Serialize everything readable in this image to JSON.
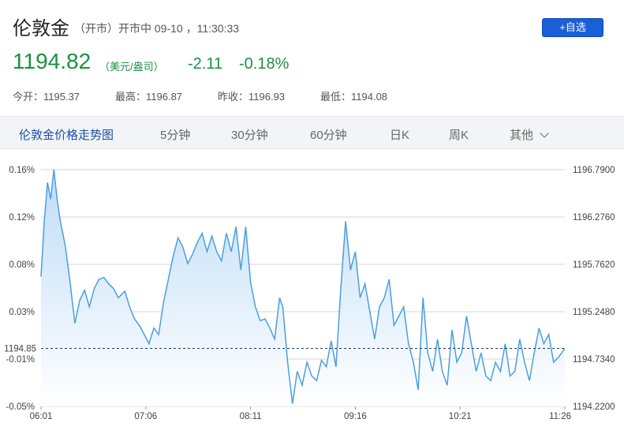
{
  "header": {
    "title": "伦敦金",
    "status": "（开市）开市中 09-10 ，11:30:33",
    "watch_button": "+自选"
  },
  "quote": {
    "price": "1194.82",
    "unit": "（美元/盎司）",
    "change": "-2.11",
    "change_pct": "-0.18%"
  },
  "stats": {
    "open": "今开：1195.37",
    "high": "最高：1196.87",
    "prev_close": "昨收：1196.93",
    "low": "最低：1194.08"
  },
  "tabs": [
    "伦敦金价格走势图",
    "5分钟",
    "30分钟",
    "60分钟",
    "日K",
    "周K",
    "其他"
  ],
  "colors": {
    "line": "#4a9fe0",
    "fill_top": "#bfdcf7",
    "fill_bottom": "#ffffff",
    "price_green": "#1a9142",
    "current_line": "#1f3a63"
  },
  "chart_data": {
    "type": "area",
    "x_ticks": [
      "06:01",
      "07:06",
      "08:11",
      "09:16",
      "10:21",
      "11:26"
    ],
    "x_range": [
      "06:01",
      "11:26"
    ],
    "y_left_ticks": [
      "0.16%",
      "0.12%",
      "0.08%",
      "0.03%",
      "-0.01%",
      "-0.05%"
    ],
    "y_right_ticks": [
      "1196.7900",
      "1196.2760",
      "1195.7620",
      "1195.2480",
      "1194.7340",
      "1194.2200"
    ],
    "ylim": [
      1194.22,
      1196.79
    ],
    "current_price_label": "1194.85",
    "current_price": 1194.85,
    "grid": true,
    "series": [
      {
        "points": [
          [
            "06:01",
            1195.63
          ],
          [
            "06:03",
            1196.23
          ],
          [
            "06:05",
            1196.65
          ],
          [
            "06:07",
            1196.47
          ],
          [
            "06:09",
            1196.79
          ],
          [
            "06:11",
            1196.47
          ],
          [
            "06:13",
            1196.23
          ],
          [
            "06:16",
            1195.97
          ],
          [
            "06:19",
            1195.57
          ],
          [
            "06:22",
            1195.12
          ],
          [
            "06:25",
            1195.37
          ],
          [
            "06:28",
            1195.48
          ],
          [
            "06:31",
            1195.3
          ],
          [
            "06:34",
            1195.5
          ],
          [
            "06:37",
            1195.6
          ],
          [
            "06:40",
            1195.62
          ],
          [
            "06:43",
            1195.55
          ],
          [
            "06:46",
            1195.5
          ],
          [
            "06:49",
            1195.4
          ],
          [
            "06:53",
            1195.47
          ],
          [
            "06:56",
            1195.3
          ],
          [
            "06:59",
            1195.17
          ],
          [
            "07:02",
            1195.1
          ],
          [
            "07:05",
            1195.0
          ],
          [
            "07:08",
            1194.9
          ],
          [
            "07:11",
            1195.07
          ],
          [
            "07:14",
            1195.0
          ],
          [
            "07:17",
            1195.35
          ],
          [
            "07:20",
            1195.6
          ],
          [
            "07:23",
            1195.85
          ],
          [
            "07:26",
            1196.05
          ],
          [
            "07:29",
            1195.95
          ],
          [
            "07:32",
            1195.77
          ],
          [
            "07:35",
            1195.87
          ],
          [
            "07:38",
            1196.0
          ],
          [
            "07:41",
            1196.1
          ],
          [
            "07:44",
            1195.9
          ],
          [
            "07:47",
            1196.07
          ],
          [
            "07:50",
            1195.9
          ],
          [
            "07:53",
            1195.8
          ],
          [
            "07:56",
            1196.1
          ],
          [
            "07:59",
            1195.9
          ],
          [
            "08:02",
            1196.17
          ],
          [
            "08:05",
            1195.7
          ],
          [
            "08:08",
            1196.17
          ],
          [
            "08:11",
            1195.57
          ],
          [
            "08:14",
            1195.3
          ],
          [
            "08:17",
            1195.15
          ],
          [
            "08:20",
            1195.17
          ],
          [
            "08:23",
            1195.07
          ],
          [
            "08:26",
            1194.95
          ],
          [
            "08:29",
            1195.4
          ],
          [
            "08:31",
            1195.3
          ],
          [
            "08:34",
            1194.7
          ],
          [
            "08:37",
            1194.25
          ],
          [
            "08:40",
            1194.6
          ],
          [
            "08:43",
            1194.45
          ],
          [
            "08:46",
            1194.7
          ],
          [
            "08:49",
            1194.55
          ],
          [
            "08:52",
            1194.5
          ],
          [
            "08:55",
            1194.72
          ],
          [
            "08:58",
            1194.65
          ],
          [
            "09:01",
            1194.93
          ],
          [
            "09:04",
            1194.65
          ],
          [
            "09:07",
            1195.5
          ],
          [
            "09:10",
            1196.23
          ],
          [
            "09:13",
            1195.7
          ],
          [
            "09:16",
            1195.9
          ],
          [
            "09:19",
            1195.4
          ],
          [
            "09:22",
            1195.55
          ],
          [
            "09:25",
            1195.25
          ],
          [
            "09:28",
            1194.95
          ],
          [
            "09:31",
            1195.3
          ],
          [
            "09:34",
            1195.4
          ],
          [
            "09:37",
            1195.6
          ],
          [
            "09:40",
            1195.1
          ],
          [
            "09:43",
            1195.2
          ],
          [
            "09:46",
            1195.3
          ],
          [
            "09:49",
            1194.9
          ],
          [
            "09:52",
            1194.7
          ],
          [
            "09:55",
            1194.4
          ],
          [
            "09:58",
            1195.4
          ],
          [
            "10:01",
            1194.8
          ],
          [
            "10:04",
            1194.6
          ],
          [
            "10:07",
            1194.95
          ],
          [
            "10:10",
            1194.6
          ],
          [
            "10:13",
            1194.45
          ],
          [
            "10:16",
            1195.05
          ],
          [
            "10:19",
            1194.7
          ],
          [
            "10:22",
            1194.8
          ],
          [
            "10:25",
            1195.2
          ],
          [
            "10:28",
            1194.9
          ],
          [
            "10:31",
            1194.6
          ],
          [
            "10:34",
            1194.8
          ],
          [
            "10:37",
            1194.55
          ],
          [
            "10:40",
            1194.5
          ],
          [
            "10:43",
            1194.7
          ],
          [
            "10:46",
            1194.6
          ],
          [
            "10:49",
            1194.9
          ],
          [
            "10:52",
            1194.55
          ],
          [
            "10:55",
            1194.6
          ],
          [
            "10:58",
            1194.95
          ],
          [
            "11:01",
            1194.7
          ],
          [
            "11:04",
            1194.5
          ],
          [
            "11:07",
            1194.8
          ],
          [
            "11:10",
            1195.07
          ],
          [
            "11:13",
            1194.9
          ],
          [
            "11:16",
            1195.0
          ],
          [
            "11:19",
            1194.7
          ],
          [
            "11:22",
            1194.75
          ],
          [
            "11:26",
            1194.85
          ]
        ]
      }
    ]
  }
}
